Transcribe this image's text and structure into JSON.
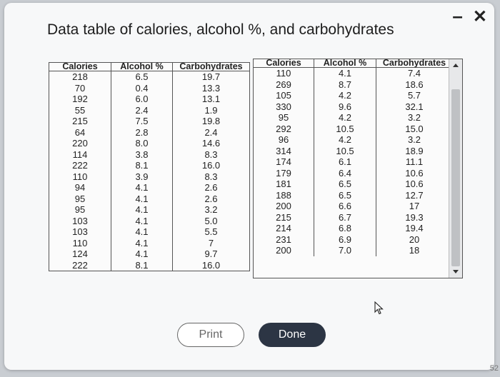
{
  "dialog": {
    "title": "Data table of calories, alcohol %, and carbohydrates",
    "minimize_icon": "minus-icon",
    "close_icon": "close-icon"
  },
  "table1": {
    "headers": [
      "Calories",
      "Alcohol %",
      "Carbohydrates"
    ],
    "rows": [
      [
        "218",
        "6.5",
        "19.7"
      ],
      [
        "70",
        "0.4",
        "13.3"
      ],
      [
        "192",
        "6.0",
        "13.1"
      ],
      [
        "55",
        "2.4",
        "1.9"
      ],
      [
        "215",
        "7.5",
        "19.8"
      ],
      [
        "64",
        "2.8",
        "2.4"
      ],
      [
        "220",
        "8.0",
        "14.6"
      ],
      [
        "114",
        "3.8",
        "8.3"
      ],
      [
        "222",
        "8.1",
        "16.0"
      ],
      [
        "110",
        "3.9",
        "8.3"
      ],
      [
        "94",
        "4.1",
        "2.6"
      ],
      [
        "95",
        "4.1",
        "2.6"
      ],
      [
        "95",
        "4.1",
        "3.2"
      ],
      [
        "103",
        "4.1",
        "5.0"
      ],
      [
        "103",
        "4.1",
        "5.5"
      ],
      [
        "110",
        "4.1",
        "7"
      ],
      [
        "124",
        "4.1",
        "9.7"
      ],
      [
        "222",
        "8.1",
        "16.0"
      ]
    ]
  },
  "table2": {
    "headers": [
      "Calories",
      "Alcohol %",
      "Carbohydrates"
    ],
    "rows": [
      [
        "110",
        "4.1",
        "7.4"
      ],
      [
        "269",
        "8.7",
        "18.6"
      ],
      [
        "105",
        "4.2",
        "5.7"
      ],
      [
        "330",
        "9.6",
        "32.1"
      ],
      [
        "95",
        "4.2",
        "3.2"
      ],
      [
        "292",
        "10.5",
        "15.0"
      ],
      [
        "96",
        "4.2",
        "3.2"
      ],
      [
        "314",
        "10.5",
        "18.9"
      ],
      [
        "174",
        "6.1",
        "11.1"
      ],
      [
        "179",
        "6.4",
        "10.6"
      ],
      [
        "181",
        "6.5",
        "10.6"
      ],
      [
        "188",
        "6.5",
        "12.7"
      ],
      [
        "200",
        "6.6",
        "17"
      ],
      [
        "215",
        "6.7",
        "19.3"
      ],
      [
        "214",
        "6.8",
        "19.4"
      ],
      [
        "231",
        "6.9",
        "20"
      ],
      [
        "200",
        "7.0",
        "18"
      ]
    ]
  },
  "buttons": {
    "print_label": "Print",
    "done_label": "Done"
  },
  "footer": {
    "page_number": "52"
  },
  "colors": {
    "done_button": "#2c3544",
    "border": "#555555"
  }
}
